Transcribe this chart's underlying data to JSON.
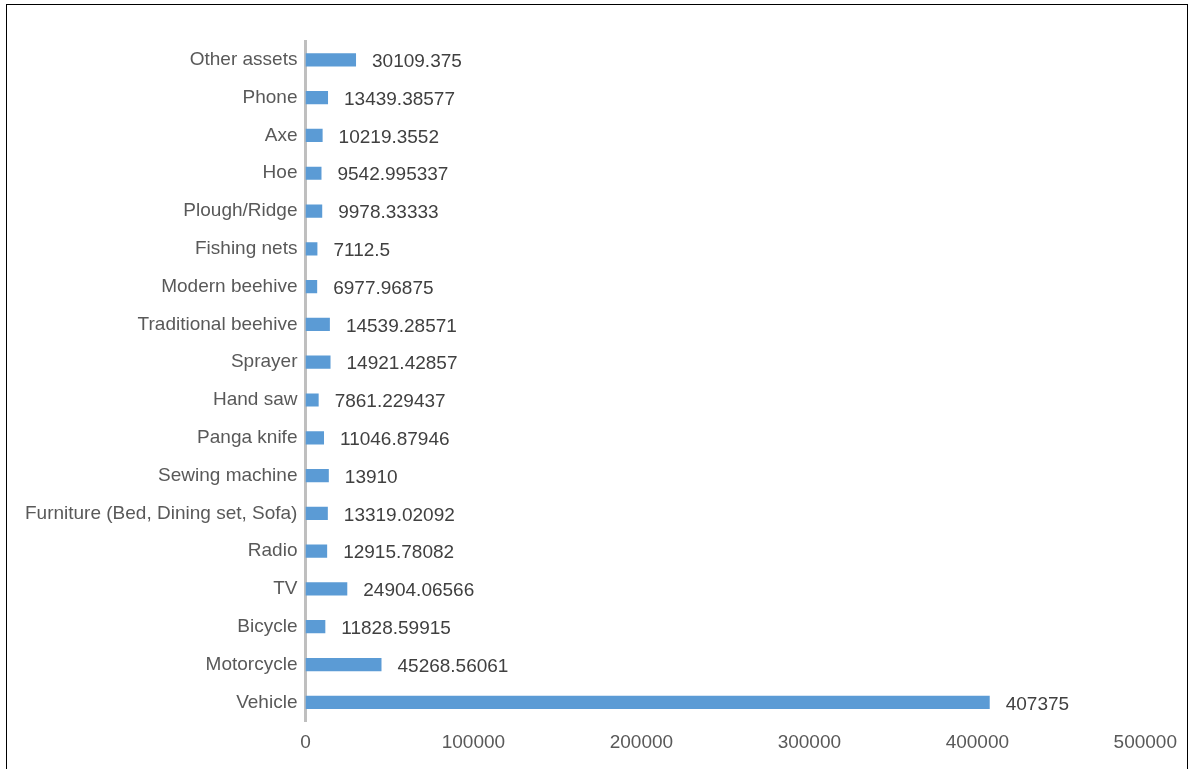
{
  "chart_data": {
    "type": "bar",
    "orientation": "horizontal",
    "categories": [
      "Other assets",
      "Phone",
      "Axe",
      "Hoe",
      "Plough/Ridge",
      "Fishing nets",
      "Modern beehive",
      "Traditional beehive",
      "Sprayer",
      "Hand saw",
      "Panga knife",
      "Sewing machine",
      "Furniture (Bed, Dining set, Sofa)",
      "Radio",
      "TV",
      "Bicycle",
      "Motorcycle",
      "Vehicle"
    ],
    "values": [
      30109.375,
      13439.38577,
      10219.3552,
      9542.995337,
      9978.33333,
      7112.5,
      6977.96875,
      14539.28571,
      14921.42857,
      7861.229437,
      11046.87946,
      13910,
      13319.02092,
      12915.78082,
      24904.06566,
      11828.59915,
      45268.56061,
      407375
    ],
    "color": "#5b9bd5",
    "xlim": [
      0,
      500000
    ],
    "xticks": [
      0,
      100000,
      200000,
      300000,
      400000,
      500000
    ],
    "grid": false,
    "legend": false,
    "data_labels": true
  }
}
